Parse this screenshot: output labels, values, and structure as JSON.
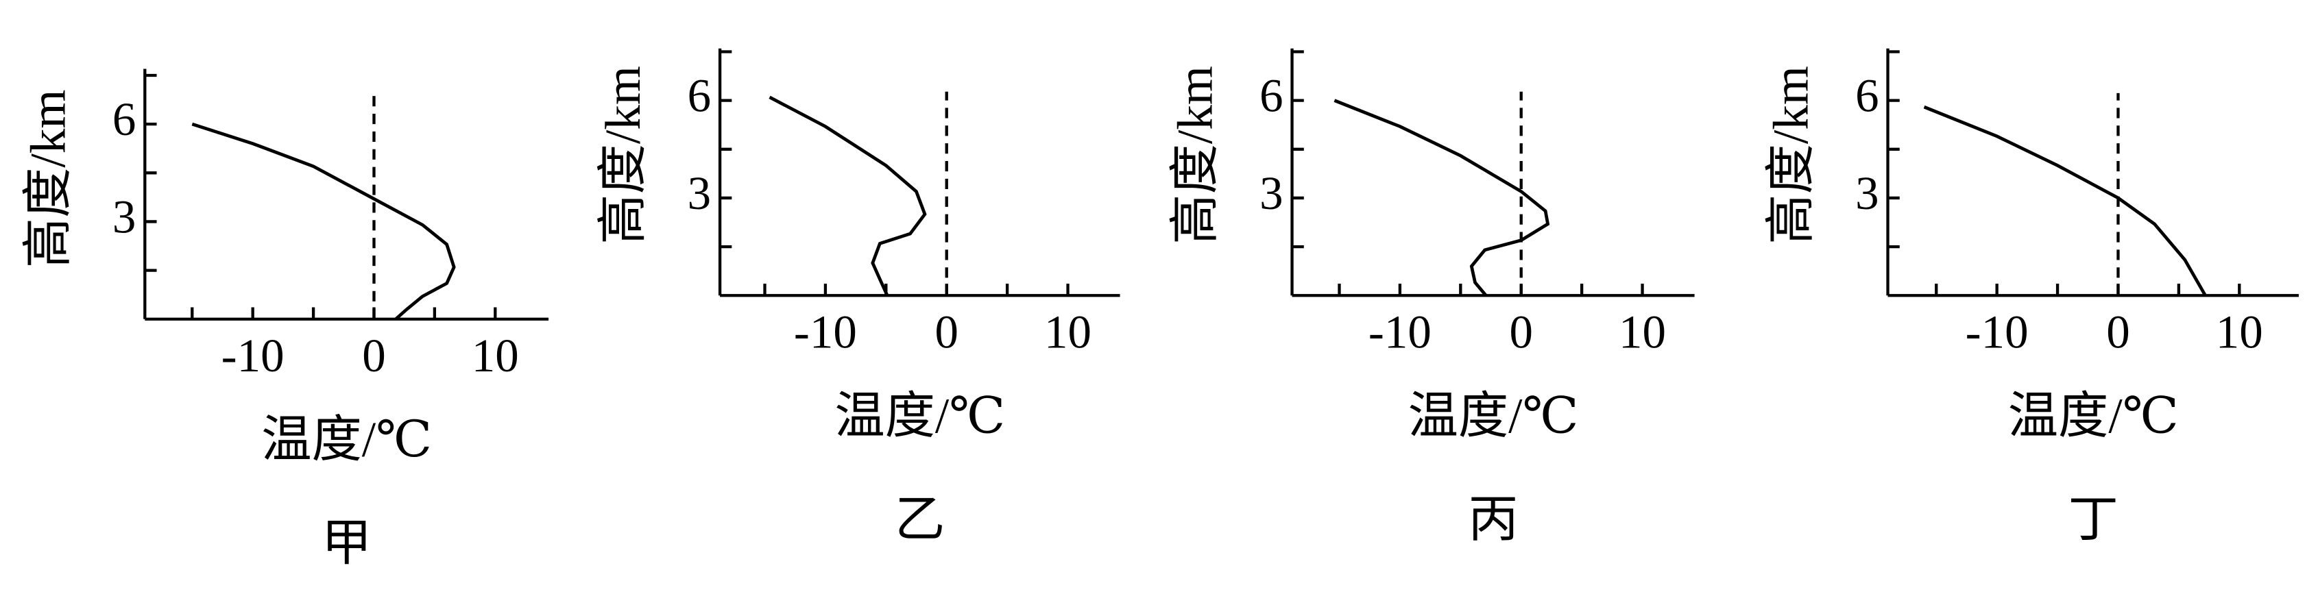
{
  "chart_data": [
    {
      "type": "line",
      "caption": "甲",
      "x_label": "温度/℃",
      "y_label": "高度/km",
      "color": "#000000",
      "xlim": [
        -18.9,
        14.4
      ],
      "ylim": [
        0,
        7.7
      ],
      "xticks": [
        -10,
        0,
        10
      ],
      "yticks": [
        3,
        6
      ],
      "xminorticks": [
        -15,
        -5,
        5
      ],
      "yminorticks": [
        1.5,
        4.5,
        7.5
      ],
      "reference_x": 0,
      "x": [
        -15,
        -10,
        -5,
        0,
        4,
        6,
        6.6,
        6,
        4,
        2.7,
        1.8
      ],
      "values": [
        6,
        5.4,
        4.7,
        3.7,
        2.9,
        2.3,
        1.6,
        1.1,
        0.7,
        0.3,
        0
      ]
    },
    {
      "type": "line",
      "caption": "乙",
      "x_label": "温度/℃",
      "y_label": "高度/km",
      "color": "#000000",
      "xlim": [
        -18.7,
        14.3
      ],
      "ylim": [
        0,
        7.6
      ],
      "xticks": [
        -10,
        0,
        10
      ],
      "yticks": [
        3,
        6
      ],
      "xminorticks": [
        -15,
        -5,
        5
      ],
      "yminorticks": [
        1.5,
        4.5,
        7.5
      ],
      "reference_x": 0,
      "x": [
        -14.6,
        -10,
        -5,
        -2.5,
        -1.8,
        -3,
        -5.5,
        -6.1,
        -5.5,
        -4.9
      ],
      "values": [
        6.1,
        5.2,
        4.0,
        3.2,
        2.5,
        1.9,
        1.6,
        1.0,
        0.5,
        0
      ]
    },
    {
      "type": "line",
      "caption": "丙",
      "x_label": "温度/℃",
      "y_label": "高度/km",
      "color": "#000000",
      "xlim": [
        -18.9,
        14.3
      ],
      "ylim": [
        0,
        7.6
      ],
      "xticks": [
        -10,
        0,
        10
      ],
      "yticks": [
        3,
        6
      ],
      "xminorticks": [
        -15,
        -5,
        5
      ],
      "yminorticks": [
        1.5,
        4.5,
        7.5
      ],
      "reference_x": 0,
      "x": [
        -15.4,
        -10,
        -5,
        0,
        2,
        2.2,
        0,
        -3,
        -4.1,
        -3.8,
        -2.9
      ],
      "values": [
        6,
        5.2,
        4.3,
        3.2,
        2.6,
        2.2,
        1.7,
        1.4,
        0.9,
        0.4,
        0
      ]
    },
    {
      "type": "line",
      "caption": "丁",
      "x_label": "温度/℃",
      "y_label": "高度/km",
      "color": "#000000",
      "xlim": [
        -19,
        14.9
      ],
      "ylim": [
        0,
        7.6
      ],
      "xticks": [
        -10,
        0,
        10
      ],
      "yticks": [
        3,
        6
      ],
      "xminorticks": [
        -15,
        -5,
        5
      ],
      "yminorticks": [
        1.5,
        4.5,
        7.5
      ],
      "reference_x": 0,
      "x": [
        -16,
        -10,
        -5,
        0,
        3,
        5.5,
        7.2
      ],
      "values": [
        5.8,
        4.9,
        4.0,
        3.0,
        2.2,
        1.1,
        0
      ]
    }
  ]
}
